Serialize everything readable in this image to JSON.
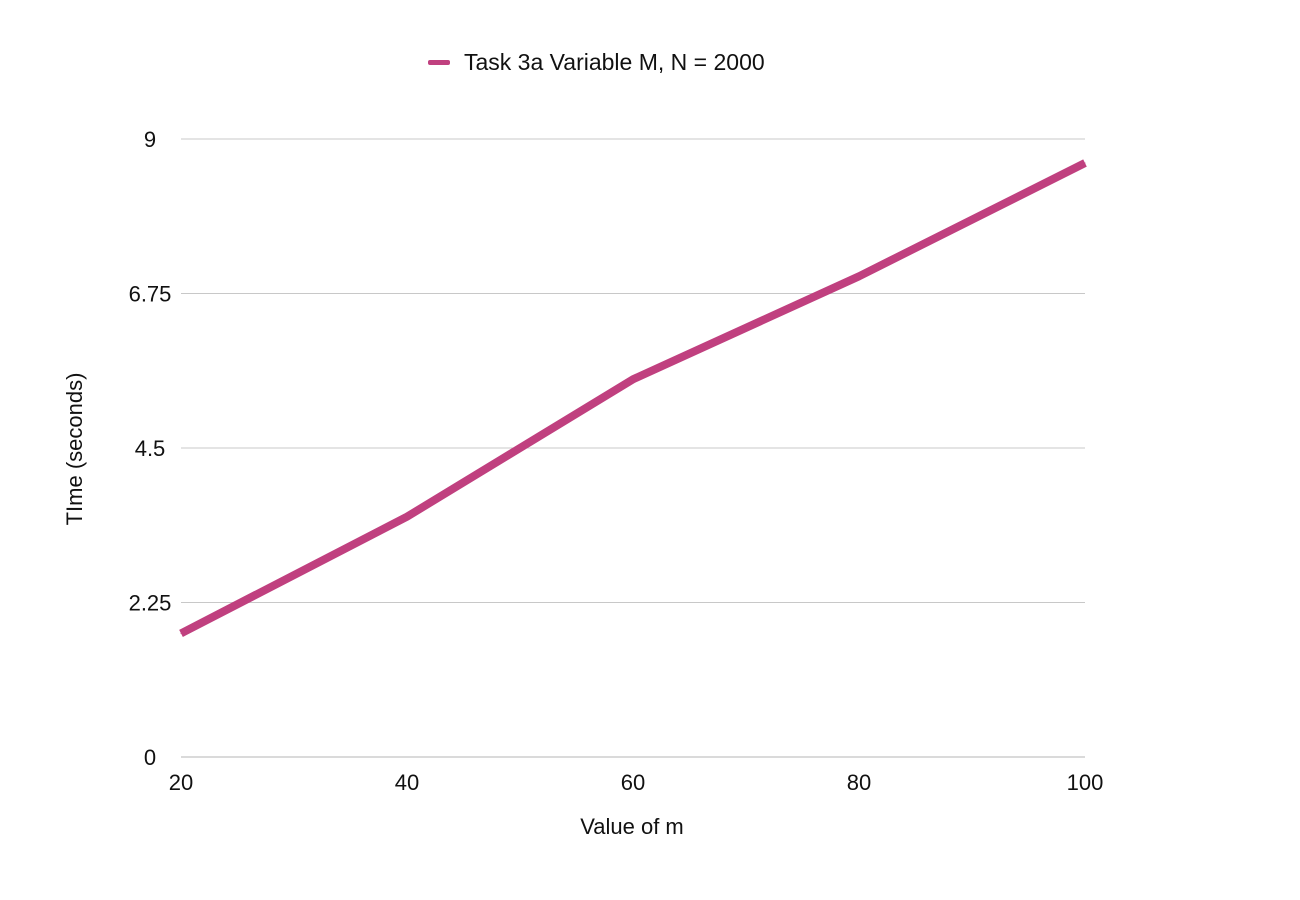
{
  "chart_data": {
    "type": "line",
    "title": "",
    "xlabel": "Value of m",
    "ylabel": "TIme (seconds)",
    "x": [
      20,
      40,
      60,
      80,
      100
    ],
    "x_tick_labels": [
      "20",
      "40",
      "60",
      "80",
      "100"
    ],
    "y_tick_values": [
      0,
      2.25,
      4.5,
      6.75,
      9
    ],
    "y_tick_labels": [
      "0",
      "2.25",
      "4.5",
      "6.75",
      "9"
    ],
    "xlim": [
      20,
      100
    ],
    "ylim": [
      0,
      9
    ],
    "grid": "horizontal",
    "legend_position": "top",
    "series": [
      {
        "name": "Task 3a Variable M, N = 2000",
        "color": "#c0407f",
        "values": [
          1.8,
          3.5,
          5.5,
          7.0,
          8.65
        ]
      }
    ]
  }
}
